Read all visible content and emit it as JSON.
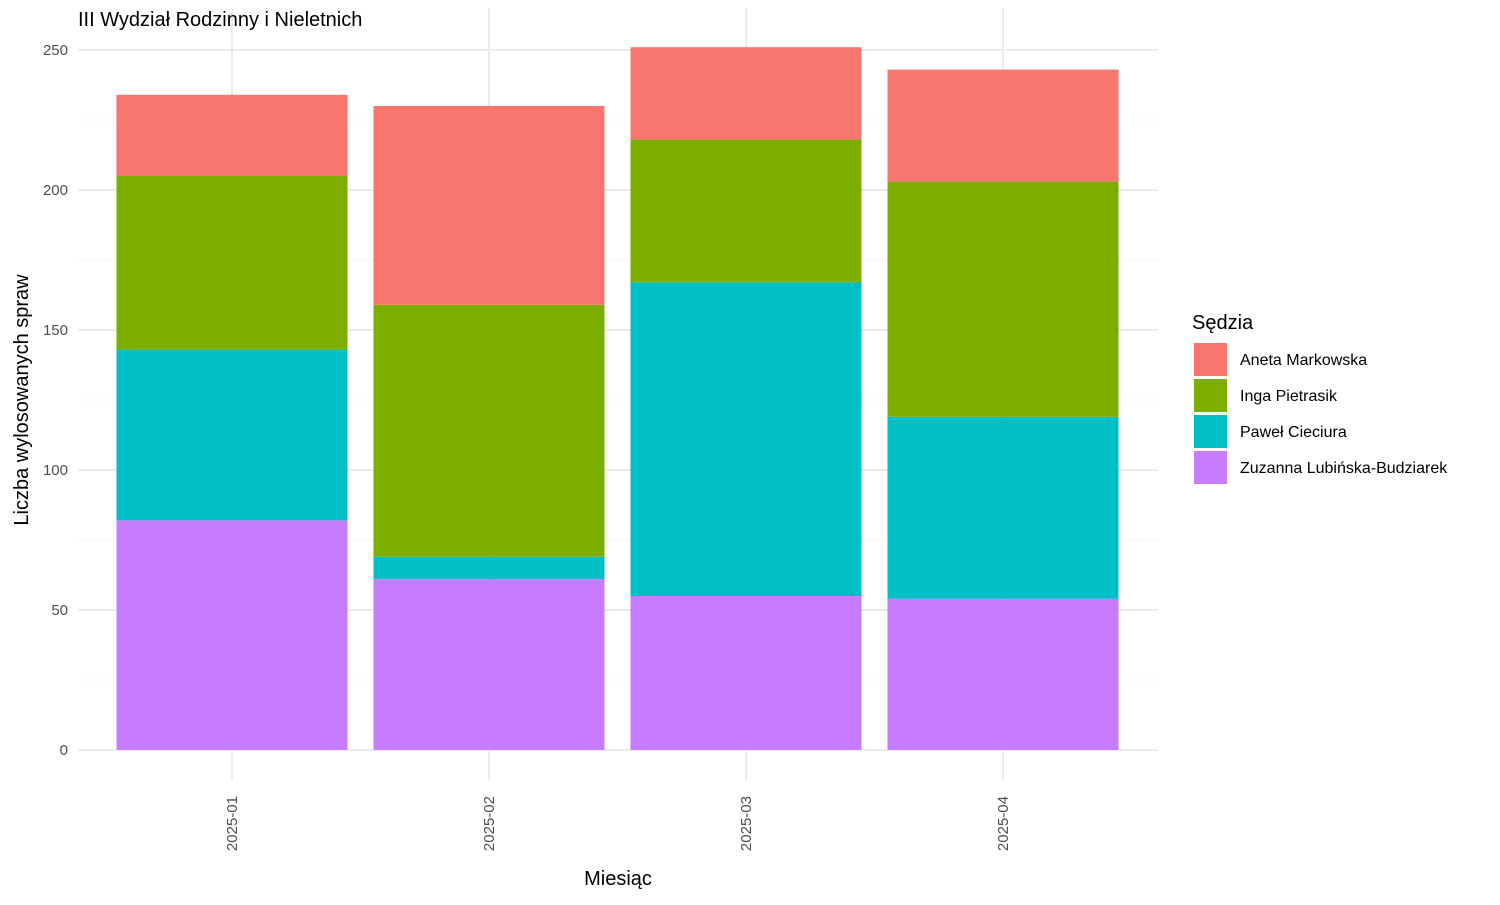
{
  "chart_data": {
    "type": "bar",
    "stacked": true,
    "title": "III Wydział Rodzinny i Nieletnich",
    "xlabel": "Miesiąc",
    "ylabel": "Liczba wylosowanych spraw",
    "ylim": [
      0,
      250
    ],
    "yticks": [
      0,
      50,
      100,
      150,
      200,
      250
    ],
    "grid": true,
    "legend_position": "right",
    "legend_title": "Sędzia",
    "categories": [
      "2025-01",
      "2025-02",
      "2025-03",
      "2025-04"
    ],
    "series": [
      {
        "name": "Aneta Markowska",
        "color": "#F8766D",
        "values": [
          29,
          71,
          33,
          40
        ]
      },
      {
        "name": "Inga Pietrasik",
        "color": "#7CAE00",
        "values": [
          62,
          90,
          51,
          84
        ]
      },
      {
        "name": "Paweł Cieciura",
        "color": "#00BFC4",
        "values": [
          61,
          8,
          112,
          65
        ]
      },
      {
        "name": "Zuzanna Lubińska-Budziarek",
        "color": "#C77CFF",
        "values": [
          82,
          61,
          55,
          54
        ]
      }
    ]
  }
}
